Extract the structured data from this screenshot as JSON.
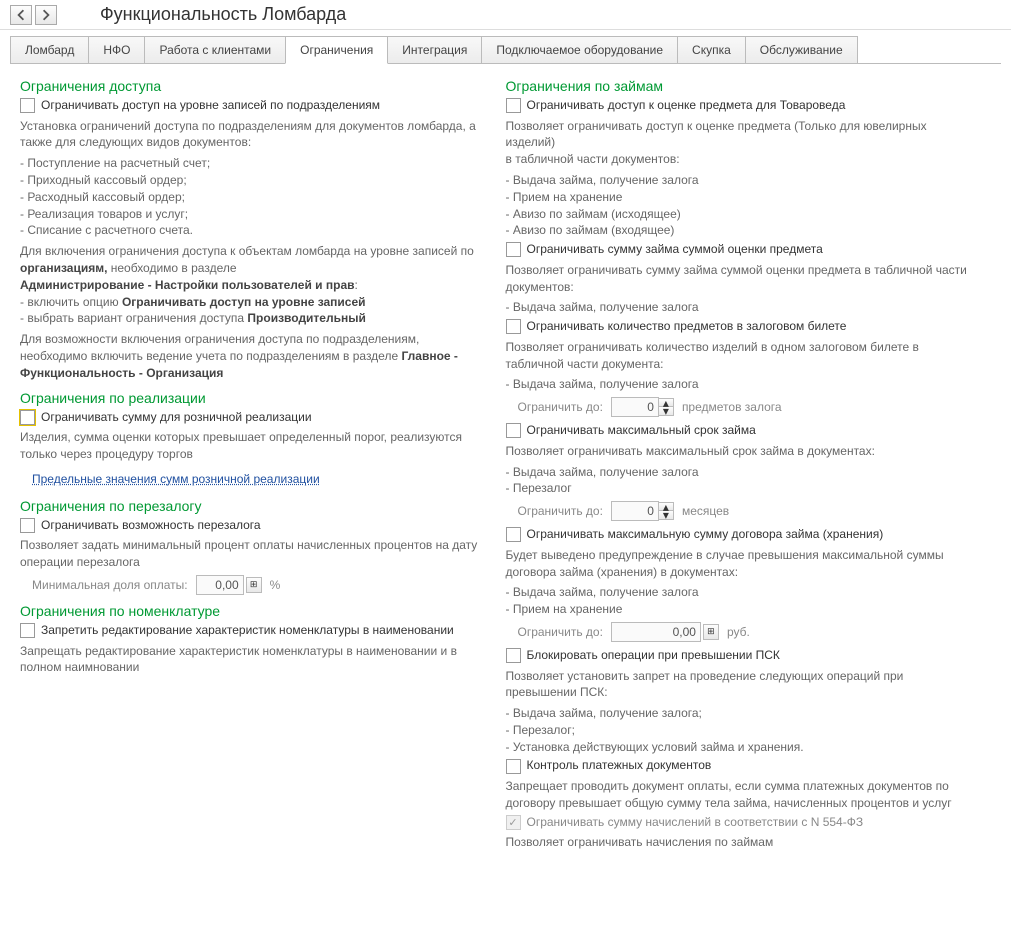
{
  "header": {
    "title": "Функциональность Ломбарда"
  },
  "tabs": [
    {
      "id": "lombard",
      "label": "Ломбард"
    },
    {
      "id": "nfo",
      "label": "НФО"
    },
    {
      "id": "clients",
      "label": "Работа с клиентами"
    },
    {
      "id": "limits",
      "label": "Ограничения",
      "active": true
    },
    {
      "id": "integration",
      "label": "Интеграция"
    },
    {
      "id": "equipment",
      "label": "Подключаемое оборудование"
    },
    {
      "id": "buyout",
      "label": "Скупка"
    },
    {
      "id": "service",
      "label": "Обслуживание"
    }
  ],
  "left": {
    "access": {
      "title": "Ограничения доступа",
      "chk1": "Ограничивать доступ на уровне записей по подразделениям",
      "desc1": "Установка ограничений доступа по подразделениям для документов ломбарда, а также для следующих видов документов:",
      "items1": [
        "- Поступление на расчетный счет;",
        "- Приходный кассовый ордер;",
        "- Расходный кассовый ордер;",
        "- Реализация товаров и услуг;",
        "- Списание с расчетного счета."
      ],
      "desc2_a": "Для включения ограничения доступа к объектам ломбарда на уровне записей по ",
      "desc2_b": "организациям,",
      "desc2_c": " необходимо в разделе",
      "desc2_d": "Администрирование - Настройки пользователей и прав",
      "desc2_e": ":",
      "desc2_f": "- включить опцию ",
      "desc2_g": "Ограничивать доступ на уровне записей",
      "desc2_h": "- выбрать вариант ограничения доступа ",
      "desc2_i": "Производительный",
      "desc3_a": "Для возможности включения ограничения доступа по подразделениям, необходимо включить ведение учета по подразделениям в разделе ",
      "desc3_b": "Главное - Функциональность - Организация"
    },
    "retail": {
      "title": "Ограничения по реализации",
      "chk1": "Ограничивать сумму для розничной реализации",
      "desc1": "Изделия, сумма оценки которых превышает определенный порог, реализуются только через процедуру торгов",
      "link": "Предельные значения сумм розничной реализации"
    },
    "repledge": {
      "title": "Ограничения по перезалогу",
      "chk1": "Ограничивать возможность перезалога",
      "desc1": "Позволяет задать минимальный процент оплаты начисленных процентов на дату операции перезалога",
      "min_label": "Минимальная доля оплаты:",
      "min_value": "0,00",
      "min_unit": "%"
    },
    "nomenclature": {
      "title": "Ограничения по номенклатуре",
      "chk1": "Запретить редактирование характеристик номенклатуры в наименовании",
      "desc1": "Запрещать редактирование характеристик номенклатуры в наименовании и в полном наимновании"
    }
  },
  "right": {
    "loans": {
      "title": "Ограничения по займам",
      "chk1": "Ограничивать доступ к оценке предмета для Товароведа",
      "desc1": "Позволяет ограничивать доступ к оценке предмета (Только для ювелирных изделий)\nв табличной части документов:",
      "items1": [
        "- Выдача займа, получение залога",
        "- Прием на хранение",
        "- Авизо по займам (исходящее)",
        "- Авизо по займам (входящее)"
      ],
      "chk2": "Ограничивать сумму займа суммой оценки предмета",
      "desc2": "Позволяет ограничивать сумму займа суммой оценки предмета в табличной части документов:",
      "items2": [
        "- Выдача займа, получение залога"
      ],
      "chk3": "Ограничивать количество предметов в залоговом билете",
      "desc3": "Позволяет ограничивать количество изделий в одном залоговом билете в табличной части документа:",
      "items3": [
        "- Выдача займа, получение залога"
      ],
      "limit_label": "Ограничить до:",
      "limit_items_value": "0",
      "limit_items_unit": "предметов залога",
      "chk4": "Ограничивать максимальный срок займа",
      "desc4": "Позволяет ограничивать максимальный срок займа  в документах:",
      "items4": [
        "- Выдача займа, получение залога",
        "- Перезалог"
      ],
      "limit_months_value": "0",
      "limit_months_unit": "месяцев",
      "chk5": "Ограничивать максимальную сумму договора займа (хранения)",
      "desc5": "Будет выведено предупреждение в случае превышения максимальной суммы договора займа (хранения) в  документах:",
      "items5": [
        "- Выдача займа, получение залога",
        "- Прием на хранение"
      ],
      "limit_sum_value": "0,00",
      "limit_sum_unit": "руб.",
      "chk6": "Блокировать операции при превышении ПСК",
      "desc6": "Позволяет установить запрет на проведение следующих операций при превышении ПСК:",
      "items6": [
        "- Выдача займа, получение залога;",
        "- Перезалог;",
        "- Установка действующих условий займа и хранения."
      ],
      "chk7": "Контроль платежных документов",
      "desc7": "Запрещает проводить документ оплаты, если сумма платежных документов по договору превышает общую сумму тела займа, начисленных процентов и услуг",
      "chk8": "Ограничивать сумму начислений в соответствии с N 554-ФЗ",
      "desc8": "Позволяет ограничивать начисления по займам"
    }
  }
}
